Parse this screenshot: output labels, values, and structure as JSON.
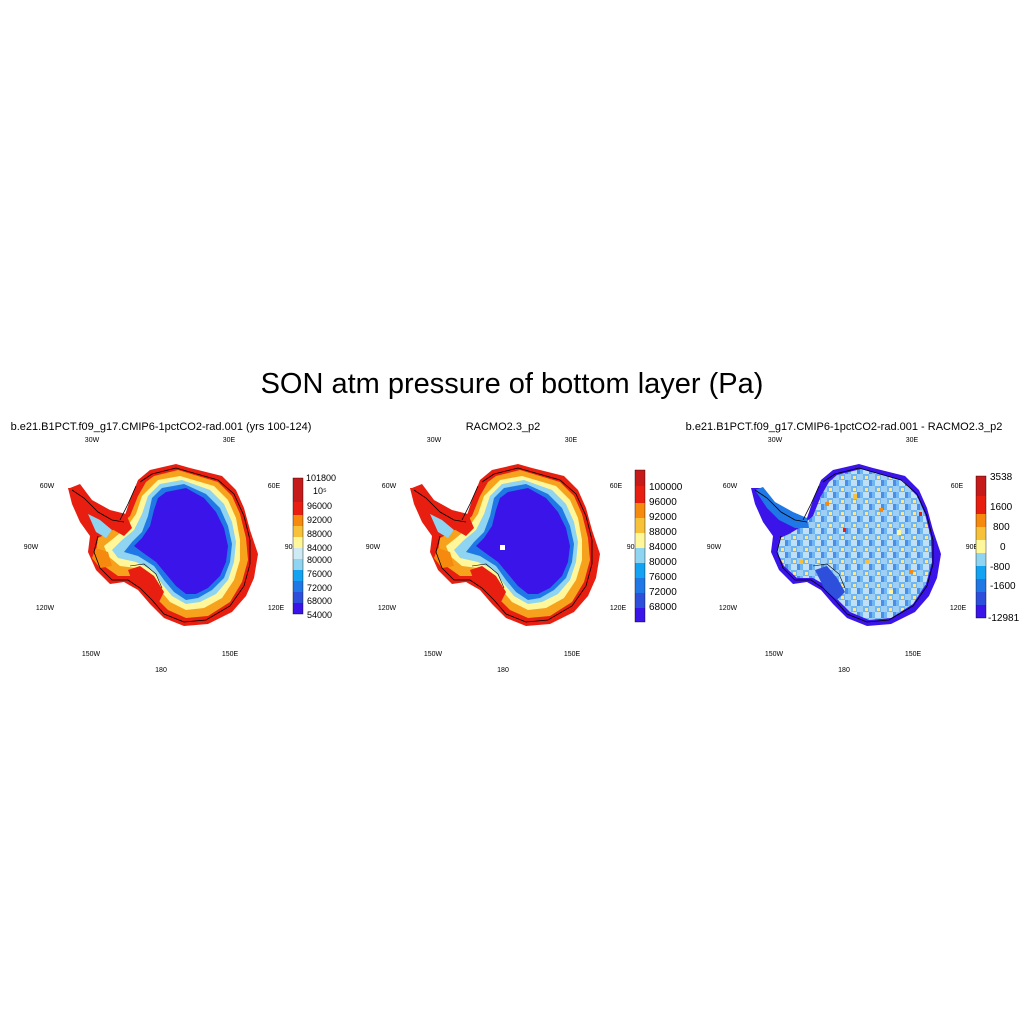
{
  "title": "SON atm pressure of bottom layer (Pa)",
  "longitude_labels": [
    "30W",
    "30E",
    "60W",
    "60E",
    "90W",
    "90E",
    "120W",
    "120E",
    "150W",
    "150E",
    "180"
  ],
  "palette": [
    "#3a14e8",
    "#2d4fdc",
    "#1f78e6",
    "#13a3f2",
    "#8fd4f0",
    "#fff79a",
    "#f7c23a",
    "#f58a0e",
    "#e81f10",
    "#c71a1a"
  ],
  "coastline_color": "#000000",
  "panels": [
    {
      "title": "b.e21.B1PCT.f09_g17.CMIP6-1pctCO2-rad.001 (yrs 100-124)",
      "colorbar_labels": [
        "101800",
        "10⁵",
        "96000",
        "92000",
        "88000",
        "84000",
        "80000",
        "76000",
        "72000",
        "68000",
        "54000"
      ]
    },
    {
      "title": "RACMO2.3_p2",
      "colorbar_labels": [
        "100000",
        "96000",
        "92000",
        "88000",
        "84000",
        "80000",
        "76000",
        "72000",
        "68000"
      ]
    },
    {
      "title": "b.e21.B1PCT.f09_g17.CMIP6-1pctCO2-rad.001 - RACMO2.3_p2",
      "colorbar_labels": [
        "3538",
        "1600",
        "800",
        "0",
        "-800",
        "-1600",
        "-12981"
      ]
    }
  ]
}
